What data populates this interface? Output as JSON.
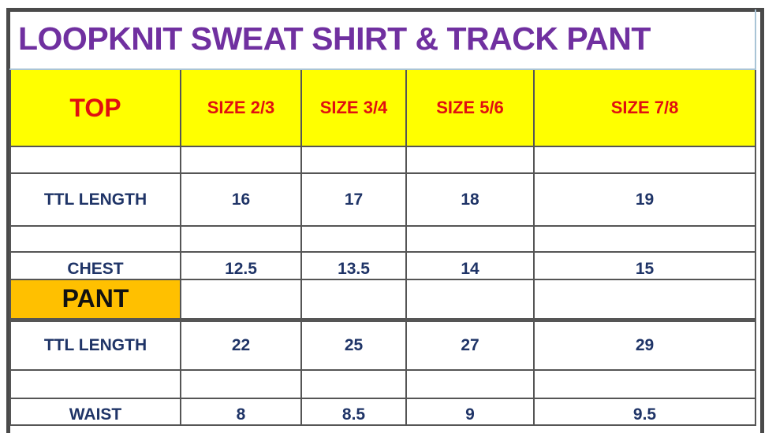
{
  "title": "LOOPKNIT SWEAT SHIRT & TRACK PANT",
  "header": {
    "section": "TOP",
    "sizes": [
      "SIZE 2/3",
      "SIZE 3/4",
      "SIZE 5/6",
      "SIZE 7/8"
    ]
  },
  "top_rows": [
    {
      "label": "TTL LENGTH",
      "values": [
        "16",
        "17",
        "18",
        "19"
      ]
    },
    {
      "label": "CHEST",
      "values": [
        "12.5",
        "13.5",
        "14",
        "15"
      ]
    }
  ],
  "pant_section": "PANT",
  "pant_rows": [
    {
      "label": "TTL LENGTH",
      "values": [
        "22",
        "25",
        "27",
        "29"
      ]
    },
    {
      "label": "WAIST",
      "values": [
        "8",
        "8.5",
        "9",
        "9.5"
      ]
    }
  ],
  "colors": {
    "title": "#7030A0",
    "header_bg": "#FFFF00",
    "header_text": "#E01010",
    "pant_bg": "#FFC000",
    "value_text": "#1F3467"
  }
}
